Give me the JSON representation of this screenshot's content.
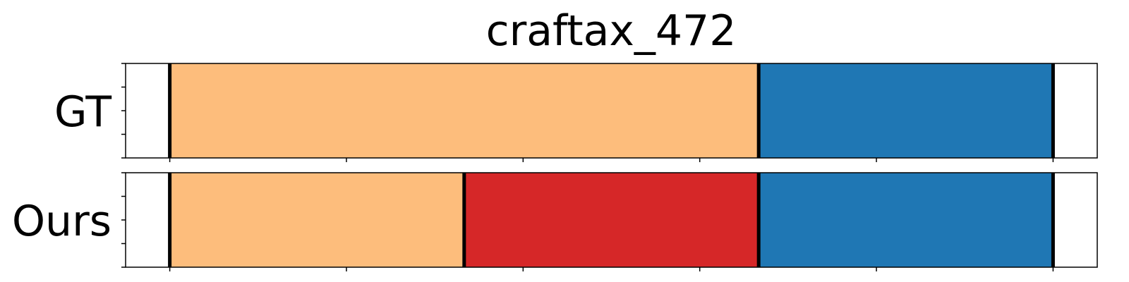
{
  "chart_data": {
    "type": "bar",
    "title": "craftax_472",
    "xlim": [
      0,
      1
    ],
    "x_tick_count": 6,
    "y_tick_count": 5,
    "rows": [
      {
        "label": "GT",
        "segments": [
          {
            "start": 0.0,
            "end": 0.05,
            "color": "#ffffff"
          },
          {
            "start": 0.05,
            "end": 0.7167,
            "color": "#fdbd7c"
          },
          {
            "start": 0.7167,
            "end": 1.05,
            "color": "#1f77b4"
          },
          {
            "start": 1.05,
            "end": 1.1,
            "color": "#ffffff"
          }
        ],
        "boundaries": [
          0.05,
          0.7167,
          1.05
        ]
      },
      {
        "label": "Ours",
        "segments": [
          {
            "start": 0.0,
            "end": 0.05,
            "color": "#ffffff"
          },
          {
            "start": 0.05,
            "end": 0.3833,
            "color": "#fdbd7c"
          },
          {
            "start": 0.3833,
            "end": 0.7167,
            "color": "#d62728"
          },
          {
            "start": 0.7167,
            "end": 1.05,
            "color": "#1f77b4"
          },
          {
            "start": 1.05,
            "end": 1.1,
            "color": "#ffffff"
          }
        ],
        "boundaries": [
          0.05,
          0.3833,
          0.7167,
          1.05
        ]
      }
    ]
  }
}
